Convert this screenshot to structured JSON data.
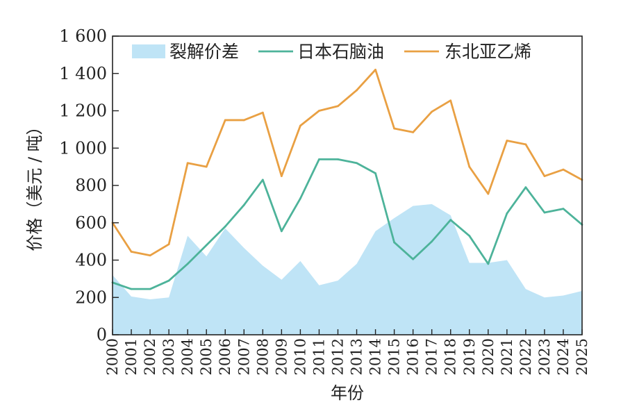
{
  "chart_data": {
    "type": "line",
    "xlabel": "年份",
    "ylabel": "价格（美元 / 吨）",
    "ylim": [
      0,
      1600
    ],
    "yticks": [
      0,
      200,
      400,
      600,
      800,
      1000,
      1200,
      1400,
      1600
    ],
    "ytick_labels": [
      "0",
      "200",
      "400",
      "600",
      "800",
      "1 000",
      "1 200",
      "1 400",
      "1 600"
    ],
    "x": [
      "2000",
      "2001",
      "2002",
      "2003",
      "2004",
      "2005",
      "2006",
      "2007",
      "2008",
      "2009",
      "2010",
      "2011",
      "2012",
      "2013",
      "2014",
      "2015",
      "2016",
      "2017",
      "2018",
      "2019",
      "2020",
      "2021",
      "2022",
      "2023",
      "2024",
      "2025"
    ],
    "legend_position": "top",
    "grid": false,
    "series": [
      {
        "name": "裂解价差",
        "kind": "area",
        "color": "#bfe4f6",
        "values": [
          320,
          205,
          190,
          200,
          530,
          420,
          570,
          465,
          370,
          295,
          395,
          265,
          290,
          380,
          555,
          625,
          690,
          700,
          640,
          385,
          385,
          400,
          245,
          200,
          210,
          235
        ]
      },
      {
        "name": "日本石脑油",
        "kind": "line",
        "color": "#4db39a",
        "values": [
          280,
          245,
          245,
          290,
          380,
          480,
          580,
          695,
          830,
          555,
          730,
          940,
          940,
          920,
          865,
          495,
          405,
          500,
          615,
          530,
          380,
          650,
          790,
          655,
          675,
          590
        ]
      },
      {
        "name": "东北亚乙烯",
        "kind": "line",
        "color": "#e9a043",
        "values": [
          600,
          445,
          425,
          485,
          920,
          900,
          1150,
          1150,
          1190,
          850,
          1120,
          1200,
          1225,
          1310,
          1420,
          1105,
          1085,
          1195,
          1255,
          900,
          755,
          1040,
          1020,
          850,
          885,
          830
        ]
      }
    ]
  }
}
